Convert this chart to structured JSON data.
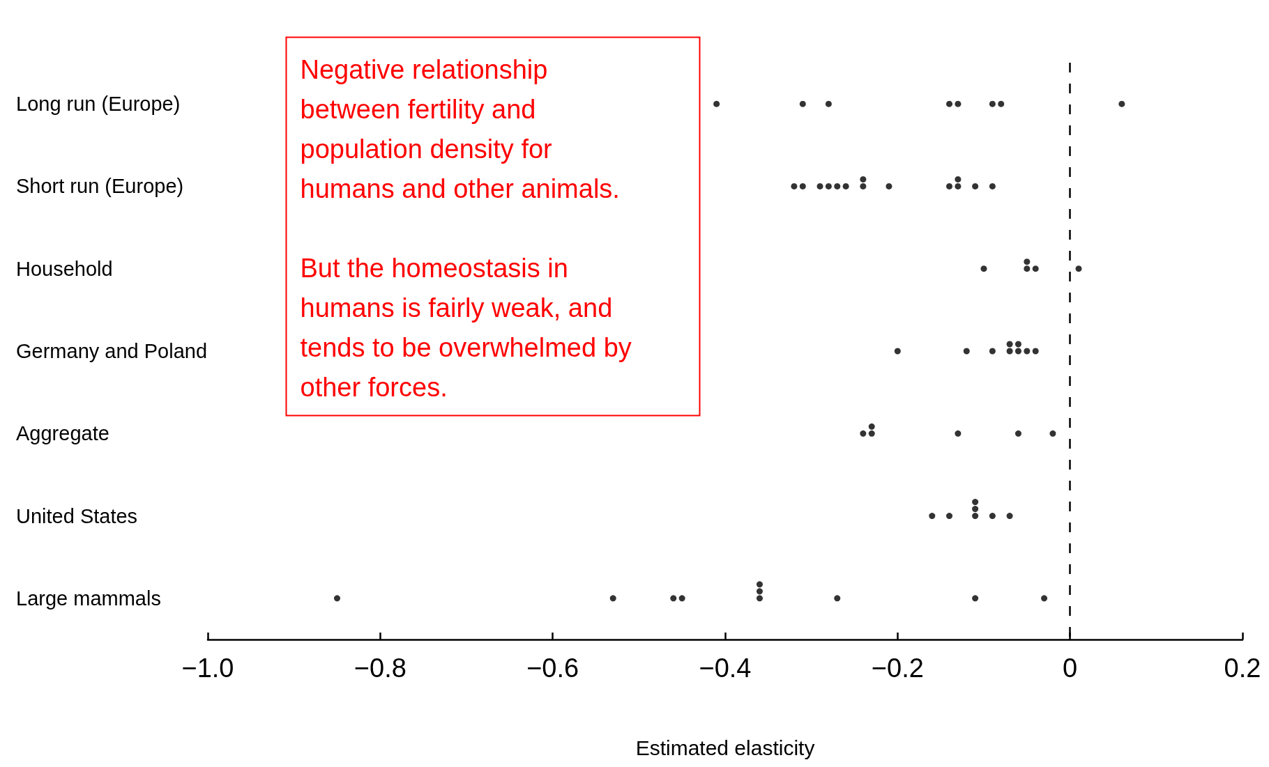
{
  "chart_data": {
    "type": "scatter",
    "orientation": "horizontal",
    "xlabel": "Estimated elasticity",
    "categories": [
      "Long run (Europe)",
      "Short run (Europe)",
      "Household",
      "Germany and Poland",
      "Aggregate",
      "United States",
      "Large mammals"
    ],
    "xlim": [
      -1,
      0.2
    ],
    "xticks": [
      {
        "value": -1,
        "label": "−1.0"
      },
      {
        "value": -0.8,
        "label": "−0.8"
      },
      {
        "value": -0.6,
        "label": "−0.6"
      },
      {
        "value": -0.4,
        "label": "−0.4"
      },
      {
        "value": -0.2,
        "label": "−0.2"
      },
      0,
      0.2
    ],
    "marker": "circle",
    "grid": false,
    "ref_lines": [
      {
        "axis": "x",
        "value": 0,
        "line_style": "dashed",
        "color": "#000000"
      }
    ],
    "annotations": [
      "Negative relationship between fertility and population density for humans and other animals.",
      "But the homeostasis in humans is fairly weak, and tends to be overwhelmed by other forces."
    ],
    "series": [
      {
        "color": "#000000",
        "values": [
          -0.41,
          -0.32,
          -0.1,
          -0.2,
          -0.24,
          -0.16,
          -0.85
        ]
      },
      {
        "color": "#000000",
        "values": [
          -0.31,
          -0.31,
          -0.05,
          -0.12,
          -0.23,
          -0.14,
          -0.53
        ]
      },
      {
        "color": "#000000",
        "values": [
          -0.28,
          -0.29,
          -0.05,
          -0.09,
          -0.23,
          -0.11,
          -0.46
        ]
      },
      {
        "color": "#000000",
        "values": [
          -0.14,
          -0.28,
          -0.04,
          -0.07,
          -0.13,
          -0.11,
          -0.45
        ]
      },
      {
        "color": "#000000",
        "values": [
          -0.13,
          -0.27,
          0.01,
          -0.07,
          -0.06,
          -0.11,
          -0.36
        ]
      },
      {
        "color": "#000000",
        "values": [
          -0.09,
          -0.26,
          null,
          -0.06,
          -0.02,
          -0.09,
          -0.36
        ]
      },
      {
        "color": "#000000",
        "values": [
          -0.08,
          -0.24,
          null,
          -0.06,
          null,
          -0.07,
          -0.36
        ]
      },
      {
        "color": "#000000",
        "values": [
          0.06,
          -0.24,
          null,
          -0.05,
          null,
          null,
          -0.27
        ]
      },
      {
        "color": "#000000",
        "values": [
          null,
          -0.21,
          null,
          -0.04,
          null,
          null,
          -0.11
        ]
      },
      {
        "color": "#000000",
        "values": [
          null,
          -0.14,
          null,
          null,
          null,
          null,
          -0.03
        ]
      },
      {
        "color": "#000000",
        "values": [
          null,
          -0.13,
          null,
          null,
          null,
          null,
          null
        ]
      },
      {
        "color": "#000000",
        "values": [
          null,
          -0.13,
          null,
          null,
          null,
          null,
          null
        ]
      },
      {
        "color": "#000000",
        "values": [
          null,
          -0.11,
          null,
          null,
          null,
          null,
          null
        ]
      },
      {
        "color": "#000000",
        "values": [
          null,
          -0.09,
          null,
          null,
          null,
          null,
          null
        ]
      }
    ]
  }
}
